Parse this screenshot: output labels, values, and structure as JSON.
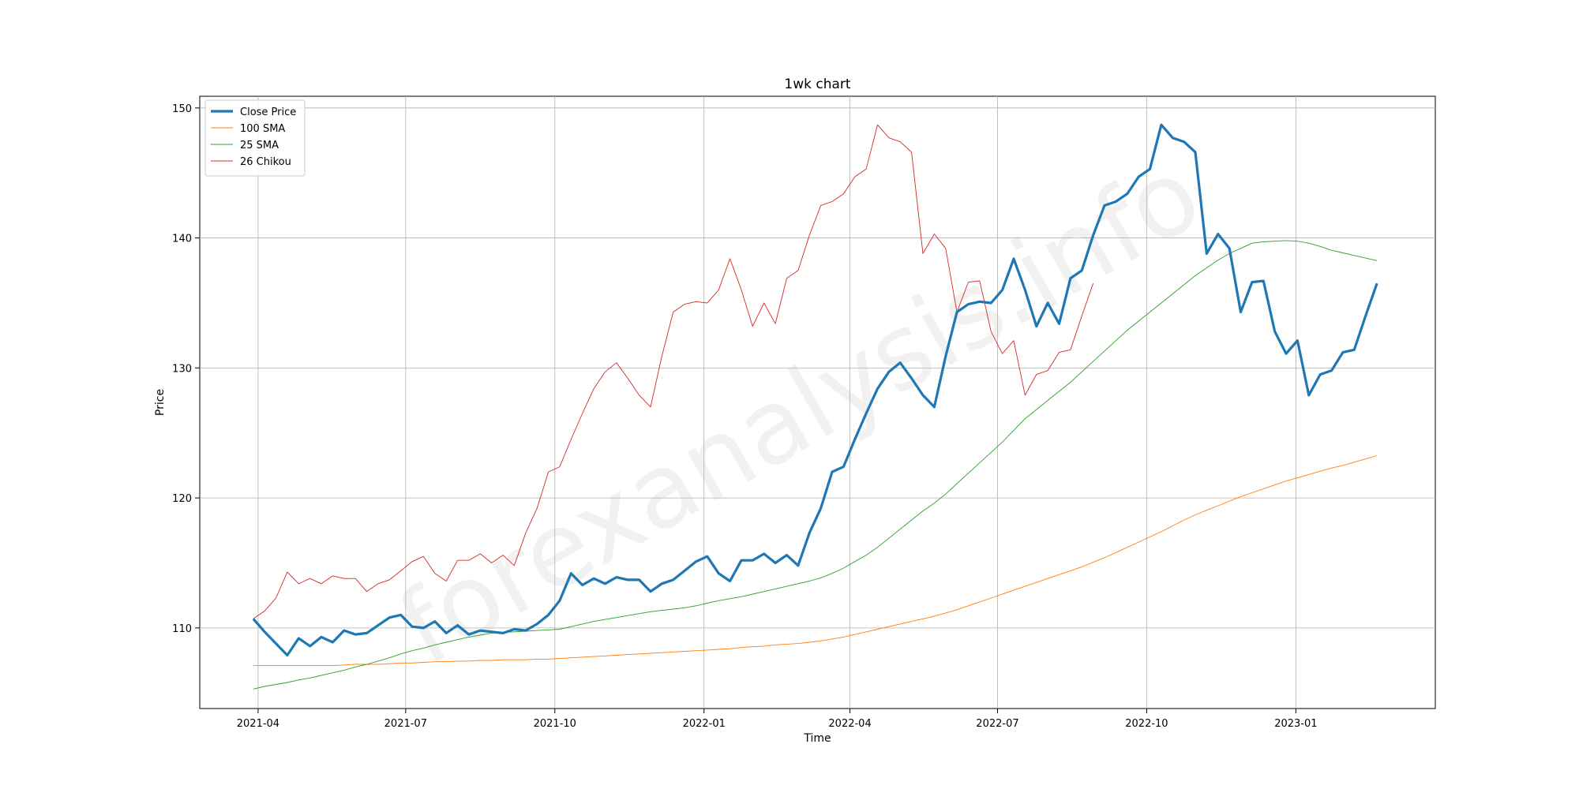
{
  "chart_data": {
    "type": "line",
    "title": "1wk chart",
    "xlabel": "Time",
    "ylabel": "Price",
    "watermark": "forexanalysis.info",
    "grid": true,
    "legend_position": "top-left",
    "xlim": [
      "2021-02-24",
      "2023-03-28"
    ],
    "ylim": [
      103.8,
      150.9
    ],
    "x_ticks": [
      {
        "date": "2021-04-01",
        "label": "2021-04"
      },
      {
        "date": "2021-07-01",
        "label": "2021-07"
      },
      {
        "date": "2021-10-01",
        "label": "2021-10"
      },
      {
        "date": "2022-01-01",
        "label": "2022-01"
      },
      {
        "date": "2022-04-01",
        "label": "2022-04"
      },
      {
        "date": "2022-07-01",
        "label": "2022-07"
      },
      {
        "date": "2022-10-01",
        "label": "2022-10"
      },
      {
        "date": "2023-01-01",
        "label": "2023-01"
      }
    ],
    "y_ticks": [
      110,
      120,
      130,
      140,
      150
    ],
    "series": [
      {
        "name": "Close Price",
        "color": "#1f77b4",
        "width": 3.2,
        "x_start": "2021-03-29",
        "step_days": 7,
        "values": [
          110.7,
          109.7,
          108.8,
          107.9,
          109.2,
          108.6,
          109.3,
          108.9,
          109.8,
          109.5,
          109.6,
          110.2,
          110.8,
          111.0,
          110.1,
          110.0,
          110.5,
          109.6,
          110.2,
          109.5,
          109.8,
          109.7,
          109.6,
          109.9,
          109.8,
          110.3,
          111.0,
          112.1,
          114.2,
          113.3,
          113.8,
          113.4,
          113.9,
          113.7,
          113.7,
          112.8,
          113.4,
          113.7,
          114.4,
          115.1,
          115.5,
          114.2,
          113.6,
          115.2,
          115.2,
          115.7,
          115.0,
          115.6,
          114.8,
          117.3,
          119.2,
          122.0,
          122.4,
          124.5,
          126.5,
          128.4,
          129.7,
          130.4,
          129.2,
          127.9,
          127.0,
          130.9,
          134.3,
          134.9,
          135.1,
          135.0,
          136.0,
          138.4,
          136.0,
          133.2,
          135.0,
          133.4,
          136.9,
          137.5,
          140.2,
          142.5,
          142.8,
          143.4,
          144.7,
          145.3,
          148.7,
          147.7,
          147.4,
          146.6,
          138.8,
          140.3,
          139.2,
          134.3,
          136.6,
          136.7,
          132.8,
          131.1,
          132.1,
          127.9,
          129.5,
          129.8,
          131.2,
          131.4,
          134.0,
          136.5
        ]
      },
      {
        "name": "100 SMA",
        "color": "#ff7f0e",
        "width": 0.9,
        "x_start": "2021-03-29",
        "step_days": 7,
        "values": [
          107.1,
          107.1,
          107.1,
          107.1,
          107.1,
          107.1,
          107.1,
          107.1,
          107.15,
          107.2,
          107.2,
          107.2,
          107.25,
          107.3,
          107.3,
          107.35,
          107.4,
          107.4,
          107.45,
          107.45,
          107.5,
          107.5,
          107.55,
          107.55,
          107.55,
          107.6,
          107.6,
          107.65,
          107.7,
          107.75,
          107.8,
          107.85,
          107.9,
          107.95,
          108.0,
          108.05,
          108.1,
          108.15,
          108.2,
          108.25,
          108.3,
          108.35,
          108.4,
          108.5,
          108.55,
          108.6,
          108.7,
          108.75,
          108.8,
          108.9,
          109.0,
          109.15,
          109.3,
          109.5,
          109.7,
          109.9,
          110.1,
          110.3,
          110.5,
          110.7,
          110.9,
          111.15,
          111.4,
          111.7,
          112.0,
          112.3,
          112.6,
          112.9,
          113.2,
          113.5,
          113.8,
          114.1,
          114.4,
          114.7,
          115.05,
          115.4,
          115.8,
          116.2,
          116.6,
          117.0,
          117.4,
          117.85,
          118.3,
          118.7,
          119.05,
          119.4,
          119.75,
          120.1,
          120.4,
          120.7,
          121.0,
          121.3,
          121.55,
          121.8,
          122.05,
          122.3,
          122.5,
          122.75,
          123.0,
          123.25
        ]
      },
      {
        "name": "25 SMA",
        "color": "#2ca02c",
        "width": 0.9,
        "x_start": "2021-03-29",
        "step_days": 7,
        "values": [
          105.3,
          105.5,
          105.65,
          105.8,
          106.0,
          106.15,
          106.35,
          106.55,
          106.75,
          107.0,
          107.2,
          107.45,
          107.7,
          108.0,
          108.25,
          108.45,
          108.7,
          108.9,
          109.1,
          109.3,
          109.45,
          109.6,
          109.65,
          109.7,
          109.75,
          109.8,
          109.85,
          109.9,
          110.1,
          110.3,
          110.5,
          110.65,
          110.8,
          110.95,
          111.1,
          111.25,
          111.35,
          111.45,
          111.55,
          111.7,
          111.9,
          112.1,
          112.25,
          112.4,
          112.6,
          112.8,
          113.0,
          113.2,
          113.4,
          113.6,
          113.85,
          114.2,
          114.6,
          115.1,
          115.6,
          116.2,
          116.9,
          117.6,
          118.3,
          119.0,
          119.6,
          120.3,
          121.1,
          121.9,
          122.7,
          123.5,
          124.3,
          125.2,
          126.1,
          126.8,
          127.5,
          128.2,
          128.9,
          129.7,
          130.5,
          131.3,
          132.1,
          132.9,
          133.6,
          134.3,
          135.0,
          135.7,
          136.4,
          137.1,
          137.7,
          138.3,
          138.8,
          139.2,
          139.6,
          139.7,
          139.75,
          139.8,
          139.75,
          139.6,
          139.35,
          139.05,
          138.85,
          138.65,
          138.45,
          138.25
        ]
      },
      {
        "name": "26 Chikou",
        "color": "#d62728",
        "width": 0.9,
        "x_start": "2021-03-29",
        "step_days": 7,
        "values": [
          110.7,
          111.3,
          112.3,
          114.3,
          113.4,
          113.8,
          113.4,
          114.0,
          113.8,
          113.8,
          112.8,
          113.4,
          113.7,
          114.4,
          115.1,
          115.5,
          114.2,
          113.6,
          115.2,
          115.2,
          115.7,
          115.0,
          115.6,
          114.8,
          117.3,
          119.2,
          122.0,
          122.4,
          124.5,
          126.5,
          128.4,
          129.7,
          130.4,
          129.2,
          127.9,
          127.0,
          130.9,
          134.3,
          134.9,
          135.1,
          135.0,
          136.0,
          138.4,
          136.0,
          133.2,
          135.0,
          133.4,
          136.9,
          137.5,
          140.2,
          142.5,
          142.8,
          143.4,
          144.7,
          145.3,
          148.7,
          147.7,
          147.4,
          146.6,
          138.8,
          140.3,
          139.2,
          134.3,
          136.6,
          136.7,
          132.8,
          131.1,
          132.1,
          127.9,
          129.5,
          129.8,
          131.2,
          131.4,
          134.0,
          136.5
        ]
      }
    ]
  }
}
